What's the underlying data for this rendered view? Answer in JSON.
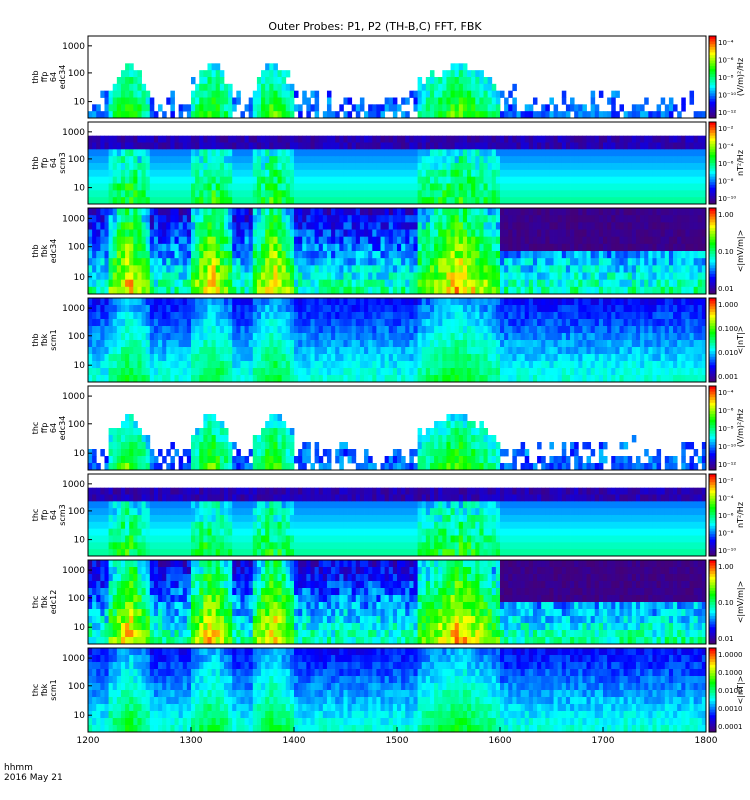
{
  "title": "Outer Probes: P1, P2 (TH-B,C) FFT, FBK",
  "footer": {
    "time_label": "hhmm",
    "date_label": "2016 May 21"
  },
  "chart_data": {
    "type": "heatmap",
    "title": "Outer Probes: P1, P2 (TH-B,C) FFT, FBK",
    "x": {
      "range": [
        1200,
        1800
      ],
      "ticks": [
        "1200",
        "1300",
        "1400",
        "1500",
        "1600",
        "1700",
        "1800"
      ]
    },
    "colors": {
      "scale": [
        "#4d0066",
        "#0000ff",
        "#00ffff",
        "#00ff00",
        "#ffff00",
        "#ff0000"
      ],
      "axis": "#000000"
    },
    "panels": [
      {
        "id": "thb-ffp-e",
        "ylabel": [
          "thb",
          "ffp",
          "64",
          "edc34"
        ],
        "yticks": [
          "1000",
          "100",
          "10"
        ],
        "ylog": true,
        "cbar_ticks": [
          "10⁻⁴",
          "10⁻⁶",
          "10⁻⁸",
          "10⁻¹⁰",
          "10⁻¹²"
        ],
        "cbar_label": "(V/m)²/Hz",
        "style": "fft_e"
      },
      {
        "id": "thb-ffp-b",
        "ylabel": [
          "thb",
          "ffp",
          "64",
          "scm3"
        ],
        "yticks": [
          "1000",
          "100",
          "10"
        ],
        "ylog": true,
        "cbar_ticks": [
          "10⁻²",
          "10⁻⁴",
          "10⁻⁶",
          "10⁻⁸",
          "10⁻¹⁰"
        ],
        "cbar_label": "nT²/Hz",
        "style": "fft_b"
      },
      {
        "id": "thb-fbk-e",
        "ylabel": [
          "thb",
          "fbk",
          "edc34"
        ],
        "yticks": [
          "1000",
          "100",
          "10"
        ],
        "ylog": true,
        "cbar_ticks": [
          "1.00",
          "0.10",
          "0.01"
        ],
        "cbar_label": "<|mV/m|>",
        "style": "fbk_e"
      },
      {
        "id": "thb-fbk-b",
        "ylabel": [
          "thb",
          "fbk",
          "scm1"
        ],
        "yticks": [
          "1000",
          "100",
          "10"
        ],
        "ylog": true,
        "cbar_ticks": [
          "1.000",
          "0.100",
          "0.010",
          "0.001"
        ],
        "cbar_label": "<|nT|>",
        "style": "fbk_b"
      },
      {
        "id": "thc-ffp-e",
        "ylabel": [
          "thc",
          "ffp",
          "64",
          "edc34"
        ],
        "yticks": [
          "1000",
          "100",
          "10"
        ],
        "ylog": true,
        "cbar_ticks": [
          "10⁻⁴",
          "10⁻⁶",
          "10⁻⁸",
          "10⁻¹⁰",
          "10⁻¹²"
        ],
        "cbar_label": "(V/m)²/Hz",
        "style": "fft_e2"
      },
      {
        "id": "thc-ffp-b",
        "ylabel": [
          "thc",
          "ffp",
          "64",
          "scm3"
        ],
        "yticks": [
          "1000",
          "100",
          "10"
        ],
        "ylog": true,
        "cbar_ticks": [
          "10⁻²",
          "10⁻⁴",
          "10⁻⁶",
          "10⁻⁸",
          "10⁻¹⁰"
        ],
        "cbar_label": "nT²/Hz",
        "style": "fft_b2"
      },
      {
        "id": "thc-fbk-e",
        "ylabel": [
          "thc",
          "fbk",
          "edc12"
        ],
        "yticks": [
          "1000",
          "100",
          "10"
        ],
        "ylog": true,
        "cbar_ticks": [
          "1.00",
          "0.10",
          "0.01"
        ],
        "cbar_label": "<|mV/m|>",
        "style": "fbk_e2"
      },
      {
        "id": "thc-fbk-b",
        "ylabel": [
          "thc",
          "fbk",
          "scm1"
        ],
        "yticks": [
          "1000",
          "100",
          "10"
        ],
        "ylog": true,
        "cbar_ticks": [
          "1.0000",
          "0.1000",
          "0.0100",
          "0.0010",
          "0.0001"
        ],
        "cbar_label": "<|nT|>",
        "style": "fbk_b2"
      }
    ],
    "activity_intervals": [
      [
        1220,
        1260
      ],
      [
        1300,
        1340
      ],
      [
        1360,
        1400
      ],
      [
        1520,
        1600
      ]
    ],
    "quiet_interval": [
      1600,
      1800
    ]
  }
}
